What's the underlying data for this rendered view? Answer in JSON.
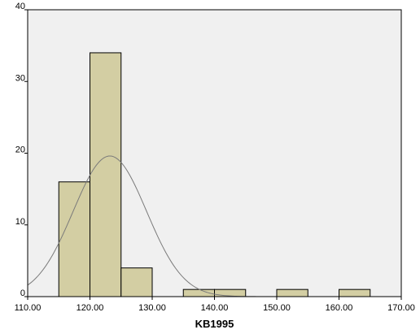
{
  "chart_data": {
    "type": "bar",
    "subtype": "histogram",
    "title": "",
    "xlabel": "KB1995",
    "ylabel": "",
    "xlim": [
      110,
      170
    ],
    "ylim": [
      0,
      40
    ],
    "x_ticks": [
      "110.00",
      "120.00",
      "130.00",
      "140.00",
      "150.00",
      "160.00",
      "170.00"
    ],
    "x_tick_values": [
      110,
      120,
      130,
      140,
      150,
      160,
      170
    ],
    "y_ticks": [
      "0",
      "10",
      "20",
      "30",
      "40"
    ],
    "y_tick_values": [
      0,
      10,
      20,
      30,
      40
    ],
    "bin_width": 5,
    "bins": [
      {
        "start": 115,
        "end": 120,
        "count": 16
      },
      {
        "start": 120,
        "end": 125,
        "count": 34
      },
      {
        "start": 125,
        "end": 130,
        "count": 4
      },
      {
        "start": 135,
        "end": 140,
        "count": 1
      },
      {
        "start": 140,
        "end": 145,
        "count": 1
      },
      {
        "start": 150,
        "end": 155,
        "count": 1
      },
      {
        "start": 160,
        "end": 165,
        "count": 1
      }
    ],
    "normal_curve": {
      "mean": 123.2,
      "sd": 5.9,
      "n": 58
    },
    "grid": false,
    "colors": {
      "plot_background": "#f0f0f0",
      "bar_fill": "#d3cea3",
      "bar_stroke": "#000000",
      "curve": "#7a7a7a",
      "frame": "#000000"
    }
  }
}
